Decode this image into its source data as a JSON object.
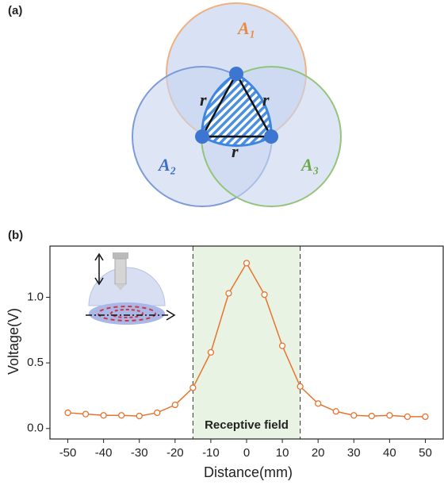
{
  "panels": {
    "a": "(a)",
    "b": "(b)"
  },
  "diagram": {
    "circles": [
      "A₁",
      "A₂",
      "A₃"
    ],
    "edges": [
      "r",
      "r",
      "r"
    ]
  },
  "chart_data": {
    "type": "line",
    "x_label": "Distance(mm)",
    "y_label": "Voltage(V)",
    "annotation": "Receptive field",
    "span": [
      -15,
      15
    ],
    "x": [
      -50,
      -45,
      -40,
      -35,
      -30,
      -25,
      -20,
      -15,
      -10,
      -5,
      0,
      5,
      10,
      15,
      20,
      25,
      30,
      35,
      40,
      45,
      50
    ],
    "series": [
      {
        "color": "#e8732e",
        "values": [
          0.12,
          0.11,
          0.1,
          0.1,
          0.095,
          0.12,
          0.18,
          0.31,
          0.58,
          1.03,
          1.26,
          1.02,
          0.63,
          0.32,
          0.19,
          0.13,
          0.1,
          0.095,
          0.1,
          0.09,
          0.09
        ]
      }
    ],
    "xlim": [
      -55,
      55
    ],
    "ylim": [
      -0.08,
      1.39
    ],
    "xticks": [
      -50,
      -40,
      -30,
      -20,
      -10,
      0,
      10,
      20,
      30,
      40,
      50
    ],
    "yticks": [
      {
        "value": 0,
        "label": "0.0"
      },
      0.5,
      {
        "value": 1,
        "label": "1.0"
      }
    ]
  }
}
